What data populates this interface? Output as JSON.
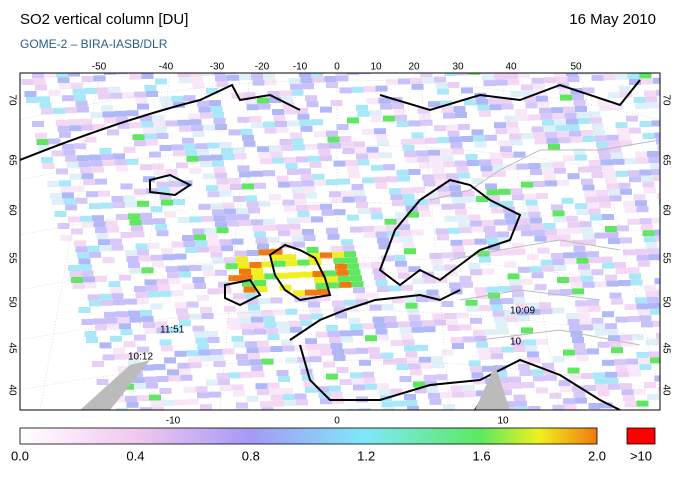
{
  "header": {
    "title": "SO2 vertical column [DU]",
    "date": "16 May 2010",
    "subtitle": "GOME-2  –  BIRA-IASB/DLR"
  },
  "map": {
    "lon_labels_top": [
      -50,
      -40,
      -30,
      -20,
      -10,
      0,
      10,
      20,
      30,
      40,
      50
    ],
    "lat_labels": [
      70,
      65,
      60,
      55,
      50,
      45,
      40
    ],
    "lon_labels_bottom": [
      -10,
      0,
      10
    ],
    "overpass_times": [
      "11:51",
      "10:12",
      "10:09",
      "10"
    ]
  },
  "colorbar": {
    "labels": [
      "0.0",
      "0.4",
      "0.8",
      "1.2",
      "1.6",
      "2.0"
    ],
    "overflow_label": ">10"
  }
}
